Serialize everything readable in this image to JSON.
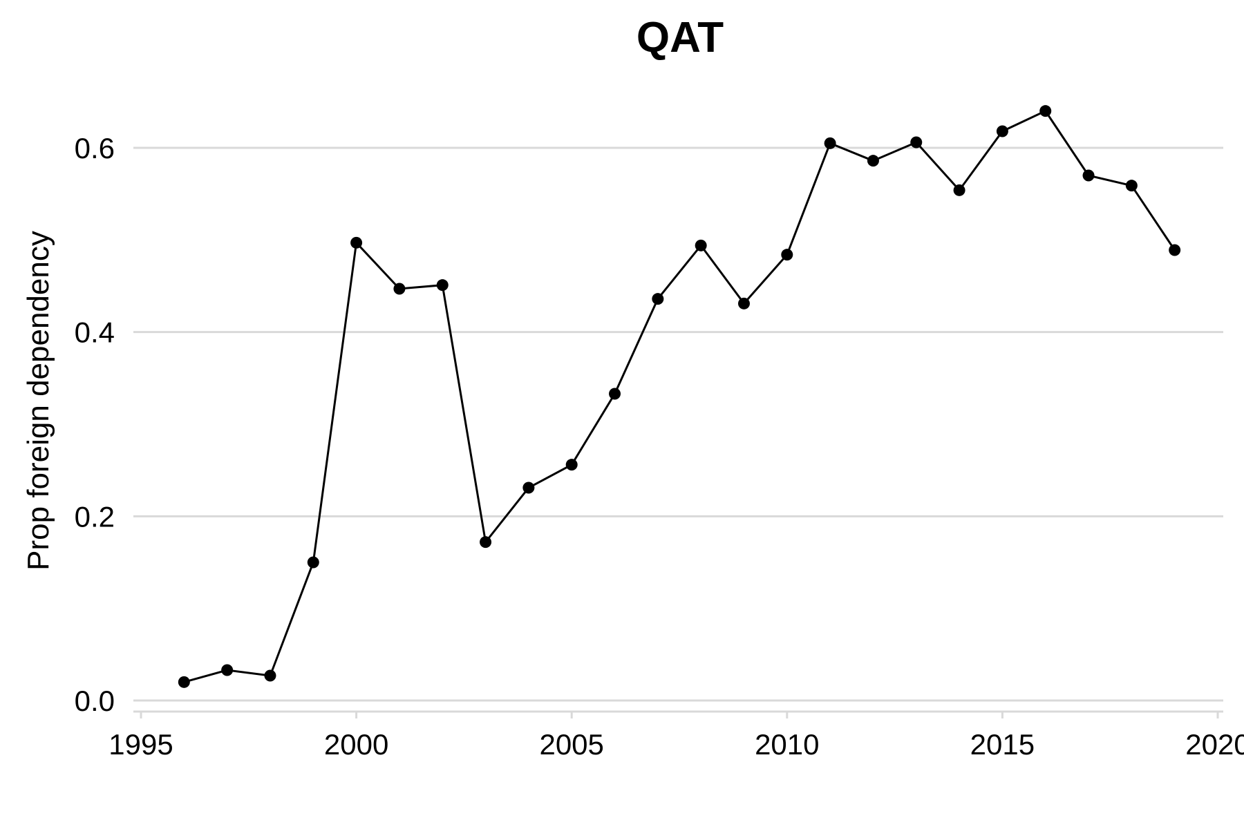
{
  "chart_data": {
    "type": "line",
    "title": "QAT",
    "xlabel": "",
    "ylabel": "Prop foreign dependency",
    "xlim": [
      1995,
      2020
    ],
    "ylim": [
      0.0,
      0.65
    ],
    "x_ticks": [
      1995,
      2000,
      2005,
      2010,
      2015,
      2020
    ],
    "x_tick_labels": [
      "1995",
      "2000",
      "2005",
      "2010",
      "2015",
      "2020"
    ],
    "y_ticks": [
      0.0,
      0.2,
      0.4,
      0.6
    ],
    "y_tick_labels": [
      "0.0",
      "0.2",
      "0.4",
      "0.6"
    ],
    "grid": "horizontal major gridlines",
    "legend": "none",
    "series": [
      {
        "color": "#000000",
        "x": [
          1996,
          1997,
          1998,
          1999,
          2000,
          2001,
          2002,
          2003,
          2004,
          2005,
          2006,
          2007,
          2008,
          2009,
          2010,
          2011,
          2012,
          2013,
          2014,
          2015,
          2016,
          2017,
          2018,
          2019
        ],
        "values": [
          0.02,
          0.033,
          0.027,
          0.15,
          0.497,
          0.447,
          0.451,
          0.172,
          0.231,
          0.256,
          0.333,
          0.436,
          0.494,
          0.431,
          0.484,
          0.605,
          0.586,
          0.606,
          0.554,
          0.618,
          0.64,
          0.57,
          0.559,
          0.489
        ]
      }
    ]
  }
}
